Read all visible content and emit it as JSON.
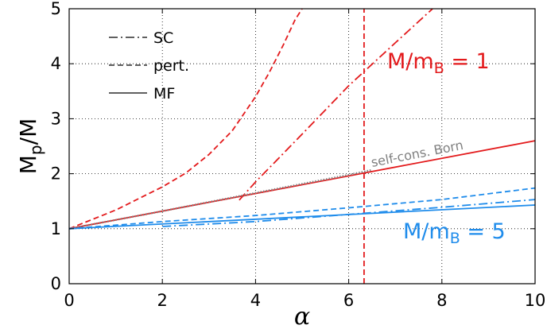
{
  "chart_data": {
    "type": "line",
    "xlabel": "α",
    "ylabel_main": "M",
    "ylabel_sub": "p",
    "ylabel_tail": "/M",
    "xlim": [
      0,
      10
    ],
    "ylim": [
      0,
      5
    ],
    "xticks": [
      "0",
      "2",
      "4",
      "6",
      "8",
      "10"
    ],
    "yticks": [
      "0",
      "1",
      "2",
      "3",
      "4",
      "5"
    ],
    "grid": true,
    "legend_position": "top-left",
    "legend": [
      {
        "label": "SC",
        "style": "dashdot"
      },
      {
        "label": "pert.",
        "style": "dashed"
      },
      {
        "label": "MF",
        "style": "solid"
      }
    ],
    "annotations": [
      {
        "text": "M/m",
        "sub": "B",
        "tail": " = 1",
        "color": "#e31a1c"
      },
      {
        "text": "M/m",
        "sub": "B",
        "tail": " = 5",
        "color": "#1f8ceb"
      },
      {
        "text": "self-cons. Born",
        "color": "#808080"
      }
    ],
    "colors": {
      "red": "#e31a1c",
      "blue": "#1f8ceb",
      "gray": "#808080"
    },
    "series": [
      {
        "group": "red",
        "style": "solid",
        "x": [
          0,
          10
        ],
        "y": [
          1.0,
          2.6
        ]
      },
      {
        "group": "red",
        "style": "dashed",
        "x": [
          0,
          1,
          2,
          2.5,
          3,
          3.5,
          4,
          4.3,
          4.6,
          4.85,
          5.0
        ],
        "y": [
          1.0,
          1.34,
          1.76,
          2.01,
          2.35,
          2.78,
          3.4,
          3.85,
          4.35,
          4.8,
          5.0
        ]
      },
      {
        "group": "red",
        "style": "dashdot",
        "x": [
          3.65,
          4.0,
          5.0,
          6.0,
          7.0,
          7.8
        ],
        "y": [
          1.52,
          1.85,
          2.72,
          3.6,
          4.38,
          5.0
        ]
      },
      {
        "group": "red",
        "style": "dashed",
        "x": [
          6.33,
          6.33
        ],
        "y": [
          0,
          5
        ]
      },
      {
        "group": "gray",
        "style": "dotted",
        "x": [
          0,
          2,
          4,
          6,
          6.5
        ],
        "y": [
          1.0,
          1.32,
          1.65,
          1.98,
          2.07
        ]
      },
      {
        "group": "blue",
        "style": "solid",
        "x": [
          0,
          10
        ],
        "y": [
          1.0,
          1.43
        ]
      },
      {
        "group": "blue",
        "style": "dashed",
        "x": [
          0,
          2,
          4,
          6,
          8,
          10
        ],
        "y": [
          1.0,
          1.13,
          1.24,
          1.38,
          1.53,
          1.74
        ]
      },
      {
        "group": "blue",
        "style": "dashdot",
        "x": [
          2,
          4,
          6,
          8,
          10
        ],
        "y": [
          1.04,
          1.13,
          1.26,
          1.39,
          1.53
        ]
      }
    ]
  }
}
